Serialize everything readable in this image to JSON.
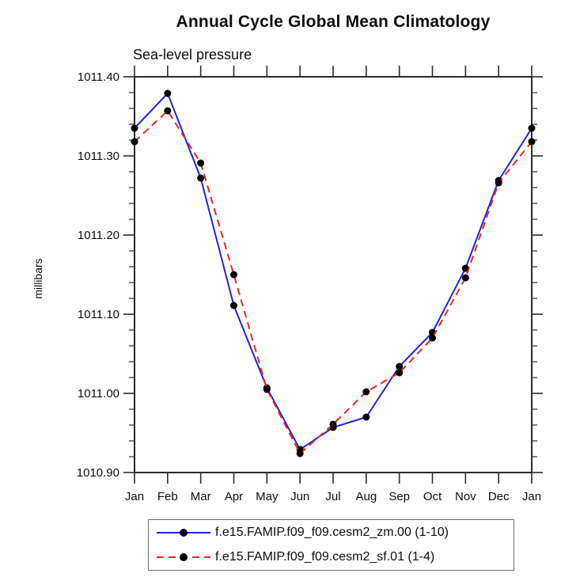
{
  "chart_data": {
    "type": "line",
    "title": "Annual Cycle Global Mean Climatology",
    "subtitle": "Sea-level pressure",
    "ylabel": "millibars",
    "xlabel": "",
    "categories": [
      "Jan",
      "Feb",
      "Mar",
      "Apr",
      "May",
      "Jun",
      "Jul",
      "Aug",
      "Sep",
      "Oct",
      "Nov",
      "Dec",
      "Jan"
    ],
    "ylim": [
      1010.9,
      1011.4
    ],
    "yticks": [
      {
        "v": 1010.9,
        "label": "1010.90"
      },
      {
        "v": 1011.0,
        "label": "1011.00"
      },
      {
        "v": 1011.1,
        "label": "1011.10"
      },
      {
        "v": 1011.2,
        "label": "1011.20"
      },
      {
        "v": 1011.3,
        "label": "1011.30"
      },
      {
        "v": 1011.4,
        "label": "1011.40"
      }
    ],
    "ytick_minor_step": 0.02,
    "grid": false,
    "legend_position": "bottom",
    "frame_color": "#2b2b2b",
    "text_color": "#0d0d0d",
    "marker_color": "#000000",
    "series": [
      {
        "name": "f.e15.FAMIP.f09_f09.cesm2_zm.00 (1-10)",
        "color": "#2222dd",
        "line_style": "solid",
        "marker": "circle",
        "values": [
          1011.335,
          1011.379,
          1011.272,
          1011.111,
          1011.007,
          1010.929,
          1010.957,
          1010.97,
          1011.034,
          1011.077,
          1011.158,
          1011.269,
          1011.335
        ]
      },
      {
        "name": "f.e15.FAMIP.f09_f09.cesm2_sf.01 (1-4)",
        "color": "#ee2222",
        "line_style": "dashed",
        "marker": "circle",
        "values": [
          1011.318,
          1011.357,
          1011.291,
          1011.15,
          1011.005,
          1010.924,
          1010.961,
          1011.002,
          1011.026,
          1011.07,
          1011.146,
          1011.266,
          1011.318
        ]
      }
    ]
  }
}
